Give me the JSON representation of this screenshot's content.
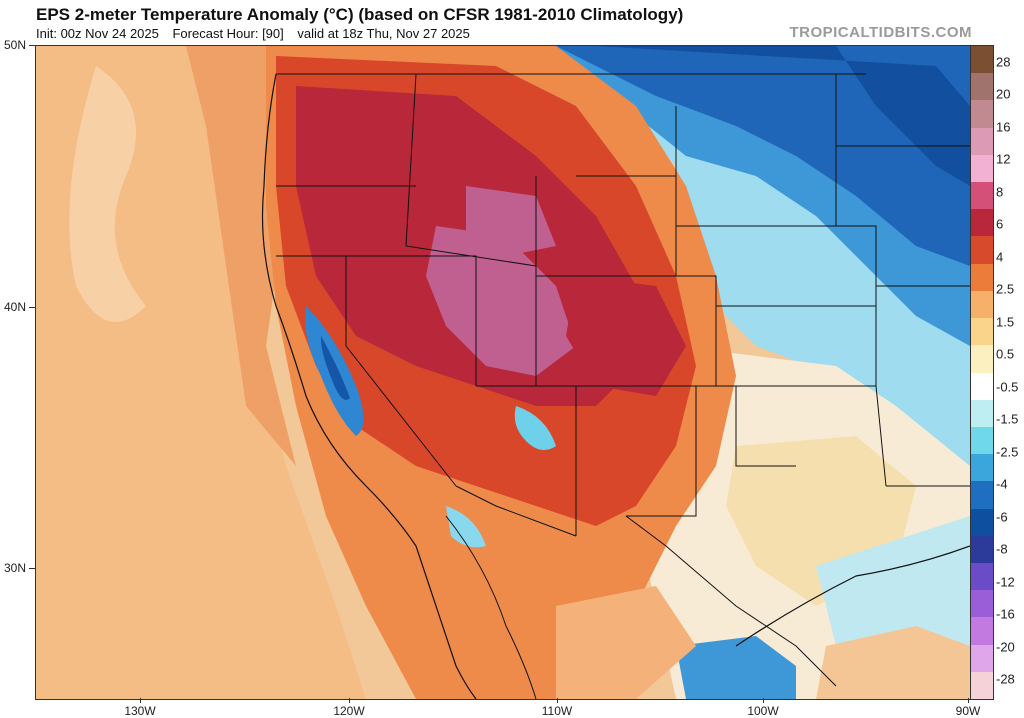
{
  "header": {
    "title": "EPS 2-meter Temperature Anomaly (°C) (based on CFSR 1981-2010 Climatology)",
    "init": "Init: 00z Nov 24 2025",
    "forecast_hour": "Forecast Hour: [90]",
    "valid": "valid at 18z Thu, Nov 27 2025",
    "brand": "TROPICALTIDBITS.COM"
  },
  "axes": {
    "lat_labels": [
      "50N",
      "40N",
      "30N"
    ],
    "lon_labels": [
      "130W",
      "120W",
      "110W",
      "100W",
      "90W"
    ]
  },
  "colorbar": {
    "labels": [
      "28",
      "20",
      "16",
      "12",
      "8",
      "6",
      "4",
      "2.5",
      "1.5",
      "0.5",
      "-0.5",
      "-1.5",
      "-2.5",
      "-4",
      "-6",
      "-8",
      "-12",
      "-16",
      "-20",
      "-28"
    ],
    "colors": [
      "#7a4f32",
      "#a0736c",
      "#c08a90",
      "#dc9ab4",
      "#f2b0d2",
      "#d45078",
      "#b8283a",
      "#d84a2c",
      "#ec7c3a",
      "#f6b06a",
      "#fbd48c",
      "#fdf0c0",
      "#ffffff",
      "#bfeef2",
      "#6fd8ea",
      "#3aa6dc",
      "#1e6fc0",
      "#0f4fa0",
      "#2c3a9a",
      "#6a4cc8",
      "#9a5ed8",
      "#c27ae0",
      "#e0a6ea",
      "#f4d2d8"
    ]
  },
  "map": {
    "colors": {
      "ocean": "#f2c898",
      "warm_light": "#f6b87a",
      "warm_med": "#ee8a4a",
      "warm_strong": "#d8472a",
      "hot": "#b8283a",
      "very_hot": "#c06090",
      "neutral": "#fdeed6",
      "cool_light": "#aee6f2",
      "cool": "#5cc4ea",
      "cold": "#2f86d2",
      "very_cold": "#1656a8",
      "border": "#111111"
    }
  }
}
